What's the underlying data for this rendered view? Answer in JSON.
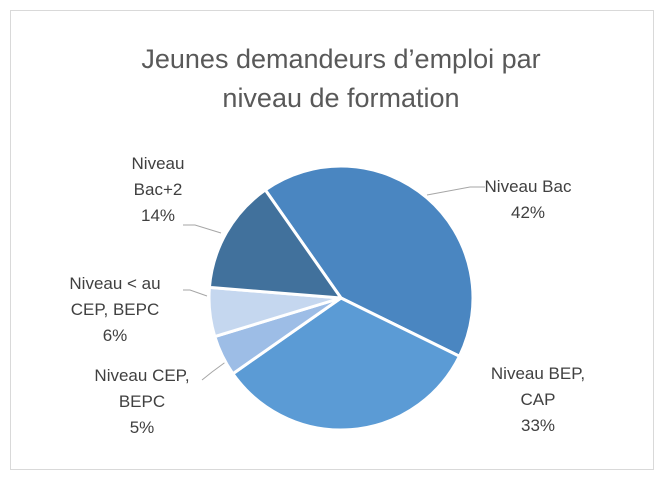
{
  "chart_data": {
    "type": "pie",
    "title": "Jeunes demandeurs d’emploi par niveau de formation",
    "categories": [
      "Niveau Bac",
      "Niveau BEP, CAP",
      "Niveau CEP, BEPC",
      "Niveau < au CEP, BEPC",
      "Niveau Bac+2"
    ],
    "values": [
      42,
      33,
      5,
      6,
      14
    ],
    "value_labels": [
      "42%",
      "33%",
      "5%",
      "6%",
      "14%"
    ],
    "colors": [
      "#4a86c1",
      "#5b9bd5",
      "#9dbde6",
      "#c5d7ef",
      "#41719c"
    ]
  }
}
